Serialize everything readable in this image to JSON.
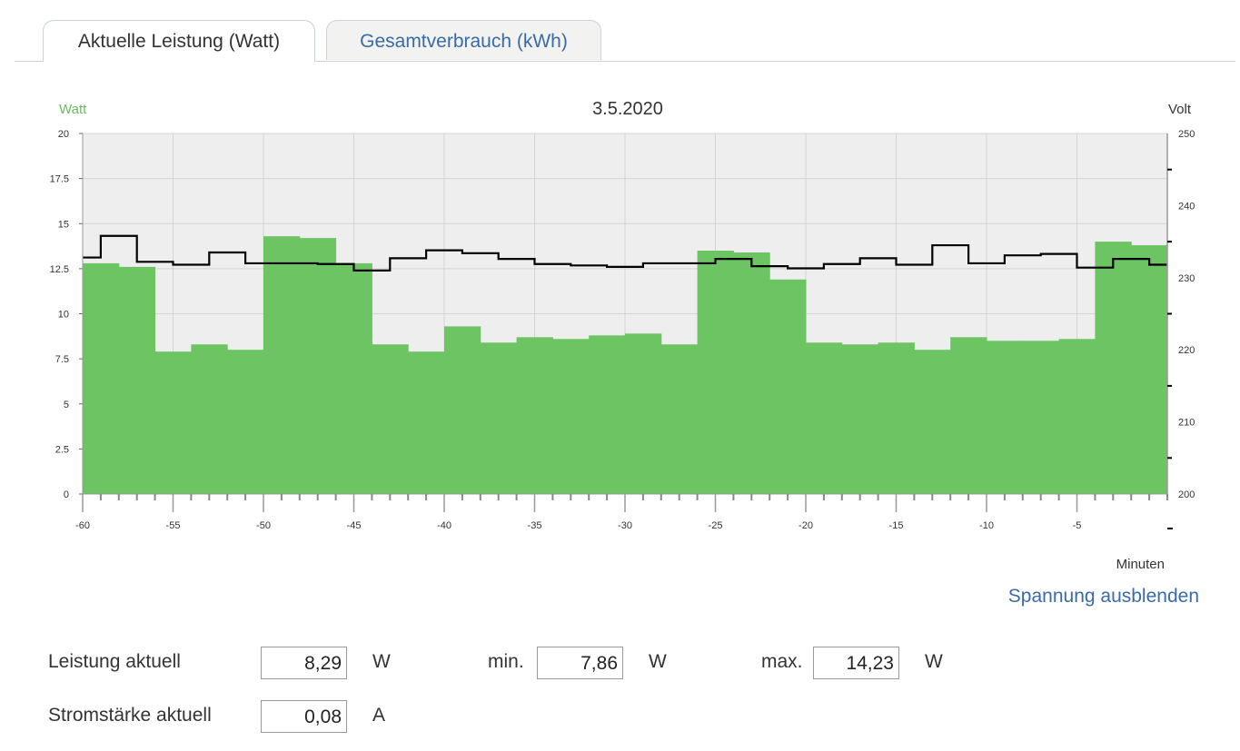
{
  "tabs": [
    {
      "label": "Aktuelle Leistung (Watt)",
      "active": true
    },
    {
      "label": "Gesamtverbrauch (kWh)",
      "active": false
    }
  ],
  "chart_data": {
    "type": "bar",
    "title": "3.5.2020",
    "ylabel_left": "Watt",
    "ylabel_right": "Volt",
    "xlabel": "Minuten",
    "ylim_left": [
      0,
      20
    ],
    "ylim_right": [
      200,
      250
    ],
    "xlim": [
      -60,
      0
    ],
    "x_ticks": [
      -60,
      -55,
      -50,
      -45,
      -40,
      -35,
      -30,
      -25,
      -20,
      -15,
      -10,
      -5
    ],
    "y_ticks_left": [
      "0",
      "2.5",
      "5",
      "7.5",
      "10",
      "12.5",
      "15",
      "17.5",
      "20"
    ],
    "y_ticks_right": [
      "200",
      "210",
      "220",
      "230",
      "240",
      "250"
    ],
    "grid": true,
    "colors": {
      "power": "#6cc463",
      "voltage": "#000000",
      "plot_bg": "#eeeeee"
    },
    "series": [
      {
        "name": "Watt",
        "type": "bar",
        "x": [
          -60,
          -58,
          -56,
          -54,
          -52,
          -50,
          -48,
          -46,
          -44,
          -42,
          -40,
          -38,
          -36,
          -34,
          -32,
          -30,
          -28,
          -26,
          -24,
          -22,
          -20,
          -18,
          -16,
          -14,
          -12,
          -10,
          -8,
          -6,
          -4,
          -2
        ],
        "values": [
          12.8,
          12.6,
          7.9,
          8.3,
          8.0,
          14.3,
          14.2,
          12.8,
          8.3,
          7.9,
          9.3,
          8.4,
          8.7,
          8.6,
          8.8,
          8.9,
          8.3,
          13.5,
          13.4,
          11.9,
          8.4,
          8.3,
          8.4,
          8.0,
          8.7,
          8.5,
          8.5,
          8.6,
          14.0,
          13.8
        ]
      },
      {
        "name": "Volt",
        "type": "step",
        "x": [
          -60,
          -59,
          -57,
          -55,
          -53,
          -51,
          -47,
          -45,
          -43,
          -41,
          -39,
          -37,
          -35,
          -33,
          -31,
          -29,
          -27,
          -25,
          -23,
          -21,
          -19,
          -17,
          -15,
          -13,
          -11,
          -9,
          -7,
          -5,
          -3,
          -1,
          0
        ],
        "values": [
          232.8,
          235.8,
          232.2,
          231.8,
          233.5,
          232.0,
          231.9,
          231.0,
          232.7,
          233.8,
          233.4,
          232.6,
          231.9,
          231.7,
          231.5,
          232.0,
          232.0,
          232.6,
          231.6,
          231.3,
          231.9,
          232.7,
          231.8,
          234.5,
          232.0,
          233.1,
          233.3,
          231.4,
          232.6,
          231.8,
          231.8
        ]
      }
    ]
  },
  "toggle_link": "Spannung ausblenden",
  "stats": {
    "leistung_label": "Leistung aktuell",
    "leistung_value": "8,29",
    "leistung_unit": "W",
    "min_label": "min.",
    "min_value": "7,86",
    "min_unit": "W",
    "max_label": "max.",
    "max_value": "14,23",
    "max_unit": "W",
    "strom_label": "Stromstärke aktuell",
    "strom_value": "0,08",
    "strom_unit": "A"
  }
}
